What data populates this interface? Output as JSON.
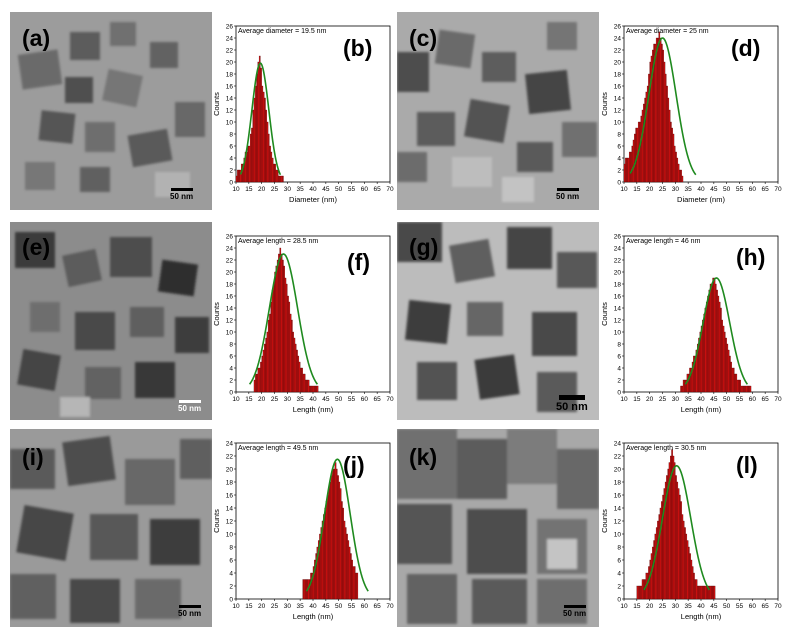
{
  "panels": [
    {
      "label": "(a)",
      "scale_text": "50 nm"
    },
    {
      "label": "(b)"
    },
    {
      "label": "(c)",
      "scale_text": "50 nm"
    },
    {
      "label": "(d)"
    },
    {
      "label": "(e)",
      "scale_text": "50 nm"
    },
    {
      "label": "(f)"
    },
    {
      "label": "(g)",
      "scale_text": "50 nm"
    },
    {
      "label": "(h)"
    },
    {
      "label": "(i)",
      "scale_text": "50 nm"
    },
    {
      "label": "(j)"
    },
    {
      "label": "(k)",
      "scale_text": "50 nm"
    },
    {
      "label": "(l)"
    }
  ],
  "chart_data": [
    {
      "type": "bar",
      "annotation": "Average diameter = 19.5 nm",
      "xlabel": "Diameter (nm)",
      "ylabel": "Counts",
      "xlim": [
        10,
        70
      ],
      "ylim": [
        0,
        26
      ],
      "xticks": [
        "10",
        "15",
        "20",
        "25",
        "30",
        "35",
        "40",
        "45",
        "50",
        "55",
        "60",
        "65",
        "70"
      ],
      "yticks": [
        "0",
        "2",
        "4",
        "6",
        "8",
        "10",
        "12",
        "14",
        "16",
        "18",
        "20",
        "22",
        "24",
        "26"
      ],
      "bin_width": 0.5,
      "bin_start": 10,
      "values": [
        1,
        2,
        2,
        2,
        3,
        3,
        4,
        5,
        5,
        6,
        6,
        8,
        9,
        12,
        14,
        16,
        18,
        20,
        21,
        19,
        16,
        15,
        14,
        12,
        10,
        8,
        6,
        5,
        4,
        3,
        3,
        2,
        2,
        1,
        1,
        1,
        1
      ],
      "fit": {
        "mean": 19.5,
        "sigma": 3.3,
        "peak": 19.8
      }
    },
    {
      "type": "bar",
      "annotation": "Average diameter = 25 nm",
      "xlabel": "Diameter (nm)",
      "ylabel": "Counts",
      "xlim": [
        10,
        70
      ],
      "ylim": [
        0,
        26
      ],
      "xticks": [
        "10",
        "15",
        "20",
        "25",
        "30",
        "35",
        "40",
        "45",
        "50",
        "55",
        "60",
        "65",
        "70"
      ],
      "yticks": [
        "0",
        "2",
        "4",
        "6",
        "8",
        "10",
        "12",
        "14",
        "16",
        "18",
        "20",
        "22",
        "24",
        "26"
      ],
      "bin_width": 0.5,
      "bin_start": 10,
      "values": [
        3,
        4,
        4,
        4,
        5,
        5,
        6,
        7,
        8,
        9,
        9,
        10,
        10,
        11,
        12,
        13,
        14,
        15,
        16,
        18,
        20,
        21,
        22,
        23,
        23,
        24,
        24,
        25,
        24,
        23,
        22,
        20,
        18,
        16,
        14,
        12,
        10,
        9,
        8,
        6,
        5,
        4,
        3,
        2,
        2,
        1
      ],
      "fit": {
        "mean": 25,
        "sigma": 5.3,
        "peak": 24
      }
    },
    {
      "type": "bar",
      "annotation": "Average length = 28.5 nm",
      "xlabel": "Length (nm)",
      "ylabel": "Counts",
      "xlim": [
        10,
        70
      ],
      "ylim": [
        0,
        26
      ],
      "xticks": [
        "10",
        "15",
        "20",
        "25",
        "30",
        "35",
        "40",
        "45",
        "50",
        "55",
        "60",
        "65",
        "70"
      ],
      "yticks": [
        "0",
        "2",
        "4",
        "6",
        "8",
        "10",
        "12",
        "14",
        "16",
        "18",
        "20",
        "22",
        "24",
        "26"
      ],
      "bin_width": 0.5,
      "bin_start": 17,
      "values": [
        2,
        3,
        3,
        4,
        4,
        5,
        6,
        7,
        8,
        9,
        10,
        12,
        13,
        15,
        17,
        18,
        20,
        21,
        22,
        23,
        24,
        23,
        22,
        21,
        19,
        18,
        16,
        15,
        13,
        12,
        10,
        9,
        8,
        7,
        6,
        5,
        4,
        4,
        3,
        3,
        2,
        2,
        2,
        1,
        1,
        1,
        1,
        1,
        1,
        1
      ],
      "fit": {
        "mean": 28.5,
        "sigma": 5.5,
        "peak": 23
      }
    },
    {
      "type": "bar",
      "annotation": "Average length = 46 nm",
      "xlabel": "Length (nm)",
      "ylabel": "Counts",
      "xlim": [
        10,
        70
      ],
      "ylim": [
        0,
        26
      ],
      "xticks": [
        "10",
        "15",
        "20",
        "25",
        "30",
        "35",
        "40",
        "45",
        "50",
        "55",
        "60",
        "65",
        "70"
      ],
      "yticks": [
        "0",
        "2",
        "4",
        "6",
        "8",
        "10",
        "12",
        "14",
        "16",
        "18",
        "20",
        "22",
        "24",
        "26"
      ],
      "bin_width": 0.5,
      "bin_start": 32,
      "values": [
        1,
        1,
        2,
        2,
        2,
        3,
        3,
        4,
        4,
        5,
        6,
        6,
        7,
        8,
        9,
        10,
        11,
        12,
        13,
        14,
        15,
        16,
        17,
        18,
        18,
        19,
        19,
        18,
        17,
        16,
        15,
        14,
        12,
        11,
        10,
        9,
        8,
        7,
        6,
        5,
        4,
        4,
        3,
        3,
        2,
        2,
        2,
        1,
        1,
        1,
        1,
        1,
        1,
        1,
        1
      ],
      "fit": {
        "mean": 46,
        "sigma": 5.2,
        "peak": 19
      }
    },
    {
      "type": "bar",
      "annotation": "Average length = 49.5 nm",
      "xlabel": "Length (nm)",
      "ylabel": "Counts",
      "xlim": [
        10,
        70
      ],
      "ylim": [
        0,
        24
      ],
      "xticks": [
        "10",
        "15",
        "20",
        "25",
        "30",
        "35",
        "40",
        "45",
        "50",
        "55",
        "60",
        "65",
        "70"
      ],
      "yticks": [
        "0",
        "2",
        "4",
        "6",
        "8",
        "10",
        "12",
        "14",
        "16",
        "18",
        "20",
        "22",
        "24"
      ],
      "bin_width": 0.5,
      "bin_start": 36,
      "values": [
        3,
        3,
        3,
        3,
        3,
        3,
        4,
        4,
        5,
        6,
        7,
        8,
        9,
        10,
        11,
        12,
        13,
        14,
        15,
        16,
        17,
        18,
        19,
        20,
        20,
        21,
        20,
        19,
        18,
        17,
        15,
        14,
        12,
        11,
        10,
        9,
        8,
        7,
        6,
        5,
        5,
        4,
        4
      ],
      "fit": {
        "mean": 49.5,
        "sigma": 5,
        "peak": 21.5
      }
    },
    {
      "type": "bar",
      "annotation": "Average length = 30.5 nm",
      "xlabel": "Length (nm)",
      "ylabel": "Counts",
      "xlim": [
        10,
        70
      ],
      "ylim": [
        0,
        24
      ],
      "xticks": [
        "10",
        "15",
        "20",
        "25",
        "30",
        "35",
        "40",
        "45",
        "50",
        "55",
        "60",
        "65",
        "70"
      ],
      "yticks": [
        "0",
        "2",
        "4",
        "6",
        "8",
        "10",
        "12",
        "14",
        "16",
        "18",
        "20",
        "22",
        "24"
      ],
      "bin_width": 0.5,
      "bin_start": 15,
      "values": [
        2,
        2,
        2,
        2,
        3,
        3,
        3,
        4,
        4,
        5,
        6,
        7,
        8,
        9,
        10,
        11,
        12,
        13,
        14,
        15,
        16,
        17,
        18,
        19,
        20,
        21,
        22,
        23,
        22,
        21,
        19,
        18,
        17,
        16,
        15,
        13,
        12,
        11,
        10,
        9,
        8,
        7,
        6,
        5,
        4,
        3,
        3,
        2,
        2,
        2,
        2,
        2,
        2,
        2,
        2,
        2,
        2,
        2,
        2,
        2,
        2
      ],
      "fit": {
        "mean": 30.5,
        "sigma": 5.5,
        "peak": 20.5
      }
    }
  ],
  "colors": {
    "bar_fill": "#cc1010",
    "bar_stroke": "#4a0000",
    "fit_line": "#1f8a1f"
  }
}
